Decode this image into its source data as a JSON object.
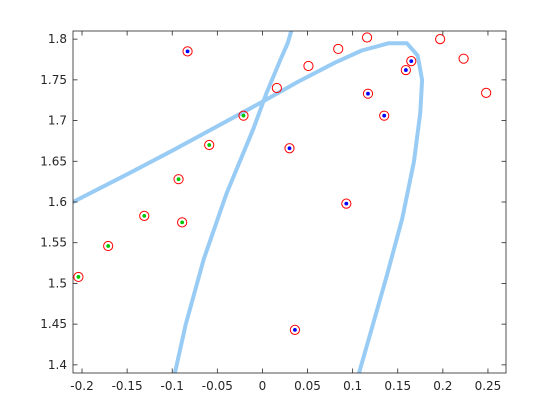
{
  "chart_data": {
    "type": "scatter",
    "title": "",
    "xlabel": "",
    "ylabel": "",
    "xlim": [
      -0.21,
      0.27
    ],
    "ylim": [
      1.39,
      1.81
    ],
    "grid": false,
    "legend": "none",
    "xticks": [
      -0.2,
      -0.15,
      -0.1,
      -0.05,
      0,
      0.05,
      0.1,
      0.15,
      0.2,
      0.25
    ],
    "xtick_labels": [
      "-0.2",
      "-0.15",
      "-0.1",
      "-0.05",
      "0",
      "0.05",
      "0.1",
      "0.15",
      "0.2",
      "0.25"
    ],
    "yticks": [
      1.4,
      1.45,
      1.5,
      1.55,
      1.6,
      1.65,
      1.7,
      1.75,
      1.8
    ],
    "ytick_labels": [
      "1.4",
      "1.45",
      "1.5",
      "1.55",
      "1.6",
      "1.65",
      "1.7",
      "1.75",
      "1.8"
    ],
    "colors": {
      "circle": "#ff0000",
      "class_green": "#00c800",
      "class_blue": "#0000ff",
      "boundary": "#99ccf5",
      "axis": "#262626"
    },
    "series": [
      {
        "marker": "circle-with-green-dot",
        "points": [
          [
            -0.204,
            1.508
          ],
          [
            -0.171,
            1.546
          ],
          [
            -0.131,
            1.583
          ],
          [
            -0.093,
            1.628
          ],
          [
            -0.089,
            1.575
          ],
          [
            -0.059,
            1.67
          ],
          [
            -0.021,
            1.706
          ]
        ]
      },
      {
        "marker": "circle-with-blue-dot",
        "points": [
          [
            -0.083,
            1.785
          ],
          [
            0.03,
            1.666
          ],
          [
            0.036,
            1.443
          ],
          [
            0.093,
            1.598
          ],
          [
            0.117,
            1.733
          ],
          [
            0.135,
            1.706
          ],
          [
            0.159,
            1.762
          ],
          [
            0.165,
            1.773
          ]
        ]
      },
      {
        "marker": "circle",
        "points": [
          [
            0.016,
            1.74
          ],
          [
            0.051,
            1.767
          ],
          [
            0.084,
            1.788
          ],
          [
            0.116,
            1.802
          ],
          [
            0.197,
            1.8
          ],
          [
            0.223,
            1.776
          ],
          [
            0.248,
            1.734
          ]
        ]
      }
    ],
    "boundary_curves": [
      [
        [
          -0.21,
          1.6
        ],
        [
          -0.15,
          1.634
        ],
        [
          -0.1,
          1.663
        ],
        [
          -0.05,
          1.693
        ],
        [
          0.0,
          1.723
        ],
        [
          0.04,
          1.748
        ],
        [
          0.08,
          1.771
        ],
        [
          0.11,
          1.786
        ],
        [
          0.14,
          1.795
        ],
        [
          0.16,
          1.795
        ],
        [
          0.172,
          1.78
        ],
        [
          0.177,
          1.75
        ],
        [
          0.175,
          1.71
        ],
        [
          0.168,
          1.65
        ],
        [
          0.155,
          1.58
        ],
        [
          0.138,
          1.51
        ],
        [
          0.12,
          1.44
        ],
        [
          0.107,
          1.39
        ]
      ],
      [
        [
          -0.097,
          1.39
        ],
        [
          -0.085,
          1.45
        ],
        [
          -0.065,
          1.53
        ],
        [
          -0.04,
          1.61
        ],
        [
          -0.01,
          1.69
        ],
        [
          0.005,
          1.735
        ],
        [
          0.02,
          1.775
        ],
        [
          0.028,
          1.795
        ],
        [
          0.032,
          1.81
        ]
      ]
    ]
  }
}
